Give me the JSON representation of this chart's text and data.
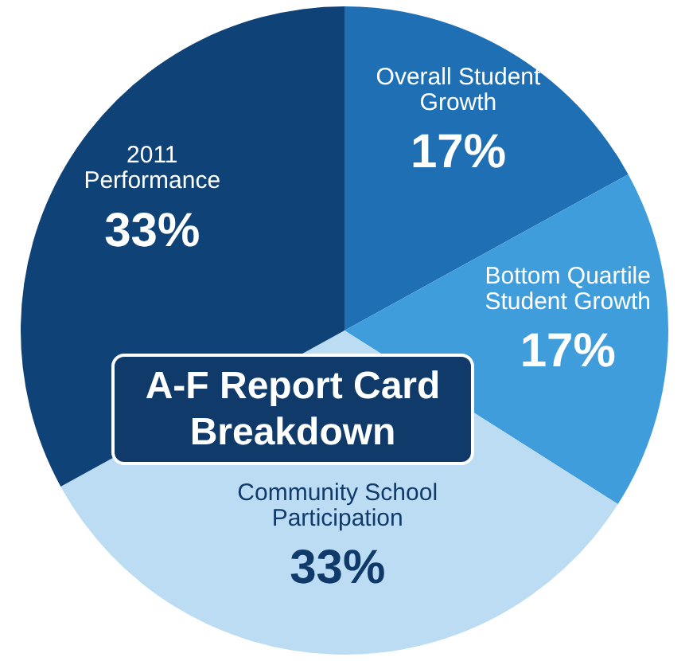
{
  "chart_data": {
    "type": "pie",
    "title": "A-F Report Card Breakdown",
    "categories": [
      "Overall Student Growth",
      "Bottom Quartile Student Growth",
      "Community School Participation",
      "2011 Performance"
    ],
    "values": [
      17,
      17,
      33,
      33
    ],
    "value_labels": [
      "17%",
      "17%",
      "33%",
      "33%"
    ],
    "colors": [
      "#1f6fb5",
      "#3f9ddc",
      "#bcdcf4",
      "#0f4277"
    ],
    "legend": false
  }
}
